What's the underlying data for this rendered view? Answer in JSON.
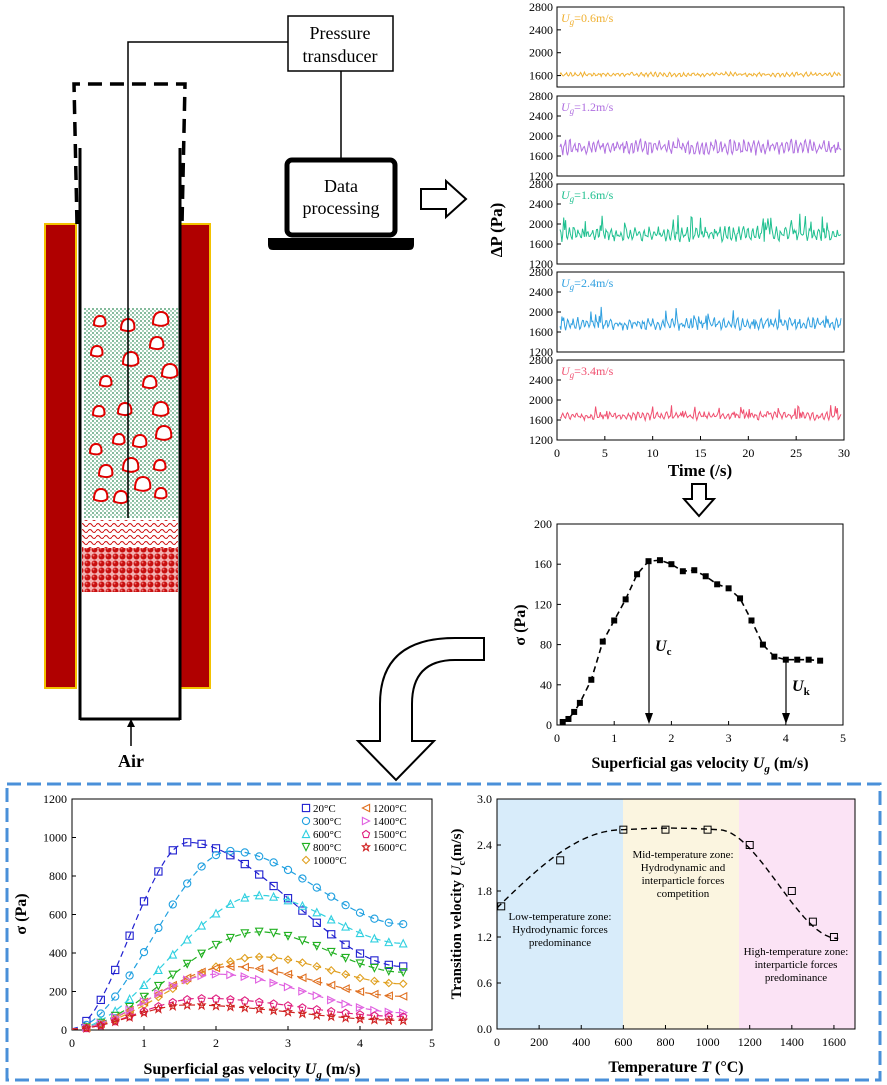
{
  "apparatus": {
    "pressure_transducer": [
      "Pressure",
      "transducer"
    ],
    "data_processing": [
      "Data",
      "processing"
    ],
    "air": "Air"
  },
  "colors": {
    "furnace": "#b00000",
    "furnace_border": "#f2c200",
    "bed_particles": "#2e8b57",
    "bubbles": "#e00000",
    "series_0_6": "#f0b030",
    "series_1_2": "#b070e0",
    "series_1_6": "#20c090",
    "series_2_4": "#30a0e0",
    "series_3_4": "#f05070",
    "dashed_box": "#4a90d9",
    "zone_low": "#d8ecfa",
    "zone_mid": "#fbf5e0",
    "zone_high": "#fbe3f5"
  },
  "time_series_panel": {
    "ylabel": "ΔP (Pa)",
    "xlabel": "Time (/s)",
    "xticks": [
      "0",
      "5",
      "10",
      "15",
      "20",
      "25",
      "30"
    ],
    "subplots": [
      {
        "label_sub": "U",
        "label_g": "g",
        "label_val": "=0.6m/s",
        "yticks": [
          "2800",
          "2400",
          "2000",
          "1600"
        ],
        "ylim": [
          1400,
          2800
        ],
        "mean": 1620,
        "amp": 45,
        "spikes": 0
      },
      {
        "label_sub": "U",
        "label_g": "g",
        "label_val": "=1.2m/s",
        "yticks": [
          "2800",
          "2400",
          "2000",
          "1600",
          "1200"
        ],
        "ylim": [
          1200,
          2800
        ],
        "mean": 1780,
        "amp": 170,
        "spikes": 0
      },
      {
        "label_sub": "U",
        "label_g": "g",
        "label_val": "=1.6m/s",
        "yticks": [
          "2800",
          "2400",
          "2000",
          "1600",
          "1200"
        ],
        "ylim": [
          1200,
          2800
        ],
        "mean": 1800,
        "amp": 170,
        "spikes": 1
      },
      {
        "label_sub": "U",
        "label_g": "g",
        "label_val": "=2.4m/s",
        "yticks": [
          "2800",
          "2400",
          "2000",
          "1600",
          "1200"
        ],
        "ylim": [
          1200,
          2800
        ],
        "mean": 1760,
        "amp": 140,
        "spikes": 1
      },
      {
        "label_sub": "U",
        "label_g": "g",
        "label_val": "=3.4m/s",
        "yticks": [
          "2800",
          "2400",
          "2000",
          "1600",
          "1200"
        ],
        "ylim": [
          1200,
          2800
        ],
        "mean": 1680,
        "amp": 90,
        "spikes": 1
      }
    ]
  },
  "sigma_chart": {
    "ylabel": "σ (Pa)",
    "xlabel_main": "Superficial gas velocity ",
    "xlabel_u": "U",
    "xlabel_g": "g",
    "xlabel_units": " (m/s)",
    "xticks": [
      "0",
      "1",
      "2",
      "3",
      "4",
      "5"
    ],
    "yticks": [
      "0",
      "40",
      "80",
      "120",
      "160",
      "200"
    ],
    "uc_label": "U",
    "uc_sub": "c",
    "uk_label": "U",
    "uk_sub": "k"
  },
  "sigma_temperature_chart": {
    "ylabel": "σ (Pa)",
    "xlabel_main": "Superficial gas velocity ",
    "xlabel_u": "U",
    "xlabel_g": "g",
    "xlabel_units": " (m/s)",
    "xticks": [
      "0",
      "1",
      "2",
      "3",
      "4",
      "5"
    ],
    "yticks": [
      "0",
      "200",
      "400",
      "600",
      "800",
      "1000",
      "1200"
    ],
    "legend": [
      {
        "label": "20°C",
        "color": "#2020d0"
      },
      {
        "label": "300°C",
        "color": "#20a0e0"
      },
      {
        "label": "600°C",
        "color": "#30d0e0"
      },
      {
        "label": "800°C",
        "color": "#20b020"
      },
      {
        "label": "1000°C",
        "color": "#e0a020"
      },
      {
        "label": "1200°C",
        "color": "#e07020"
      },
      {
        "label": "1400°C",
        "color": "#e060e0"
      },
      {
        "label": "1500°C",
        "color": "#e02080"
      },
      {
        "label": "1600°C",
        "color": "#d02020"
      }
    ]
  },
  "transition_chart": {
    "ylabel_main": "Transition velocity ",
    "ylabel_u": "U",
    "ylabel_c": "c",
    "ylabel_units": "(m/s)",
    "xlabel_main": "Temperature ",
    "xlabel_t": "T",
    "xlabel_units": " (°C)",
    "xticks": [
      "0",
      "200",
      "400",
      "600",
      "800",
      "1000",
      "1200",
      "1400",
      "1600"
    ],
    "yticks": [
      "0.0",
      "0.6",
      "1.2",
      "1.8",
      "2.4",
      "3.0"
    ],
    "zones": {
      "low": [
        "Low-temperature zone:",
        "Hydrodynamic forces",
        "predominance"
      ],
      "mid": [
        "Mid-temperature zone:",
        "Hydrodynamic and",
        "interparticle forces",
        "competition"
      ],
      "high": [
        "High-temperature zone:",
        "interparticle forces",
        "predominance"
      ]
    }
  },
  "chart_data": [
    {
      "type": "line",
      "title": "",
      "xlabel": "Time (/s)",
      "ylabel": "ΔP (Pa)",
      "xlim": [
        0,
        30
      ],
      "series": [
        {
          "name": "Ug=0.6m/s",
          "mean": 1620
        },
        {
          "name": "Ug=1.2m/s",
          "mean": 1780
        },
        {
          "name": "Ug=1.6m/s",
          "mean": 1800
        },
        {
          "name": "Ug=2.4m/s",
          "mean": 1760
        },
        {
          "name": "Ug=3.4m/s",
          "mean": 1680
        }
      ]
    },
    {
      "type": "scatter",
      "xlabel": "Superficial gas velocity Ug (m/s)",
      "ylabel": "σ (Pa)",
      "xlim": [
        0,
        5
      ],
      "ylim": [
        0,
        200
      ],
      "x": [
        0.1,
        0.2,
        0.3,
        0.4,
        0.6,
        0.8,
        1.0,
        1.2,
        1.4,
        1.6,
        1.8,
        2.0,
        2.2,
        2.4,
        2.6,
        2.8,
        3.0,
        3.2,
        3.4,
        3.6,
        3.8,
        4.0,
        4.2,
        4.4,
        4.6
      ],
      "y": [
        3,
        6,
        13,
        22,
        45,
        83,
        104,
        125,
        150,
        163,
        164,
        160,
        153,
        154,
        148,
        140,
        136,
        126,
        104,
        80,
        68,
        65,
        65,
        65,
        64
      ],
      "annotations": [
        "Uc",
        "Uk"
      ]
    },
    {
      "type": "scatter",
      "xlabel": "Superficial gas velocity Ug (m/s)",
      "ylabel": "σ (Pa)",
      "xlim": [
        0,
        5
      ],
      "ylim": [
        0,
        1200
      ],
      "series": [
        {
          "name": "20°C",
          "peak_x": 1.6,
          "peak_y": 975,
          "end_y": 330
        },
        {
          "name": "300°C",
          "peak_x": 2.2,
          "peak_y": 930,
          "end_y": 550
        },
        {
          "name": "600°C",
          "peak_x": 2.6,
          "peak_y": 700,
          "end_y": 450
        },
        {
          "name": "800°C",
          "peak_x": 2.6,
          "peak_y": 510,
          "end_y": 300
        },
        {
          "name": "1000°C",
          "peak_x": 2.6,
          "peak_y": 380,
          "end_y": 240
        },
        {
          "name": "1200°C",
          "peak_x": 2.2,
          "peak_y": 330,
          "end_y": 175
        },
        {
          "name": "1400°C",
          "peak_x": 2.0,
          "peak_y": 290,
          "end_y": 90
        },
        {
          "name": "1500°C",
          "peak_x": 1.8,
          "peak_y": 165,
          "end_y": 70
        },
        {
          "name": "1600°C",
          "peak_x": 1.6,
          "peak_y": 130,
          "end_y": 50
        }
      ]
    },
    {
      "type": "scatter",
      "xlabel": "Temperature T (°C)",
      "ylabel": "Transition velocity Uc(m/s)",
      "xlim": [
        0,
        1700
      ],
      "ylim": [
        0,
        3.0
      ],
      "x": [
        20,
        300,
        600,
        800,
        1000,
        1200,
        1400,
        1500,
        1600
      ],
      "y": [
        1.6,
        2.2,
        2.6,
        2.6,
        2.6,
        2.4,
        1.8,
        1.4,
        1.2
      ]
    }
  ]
}
